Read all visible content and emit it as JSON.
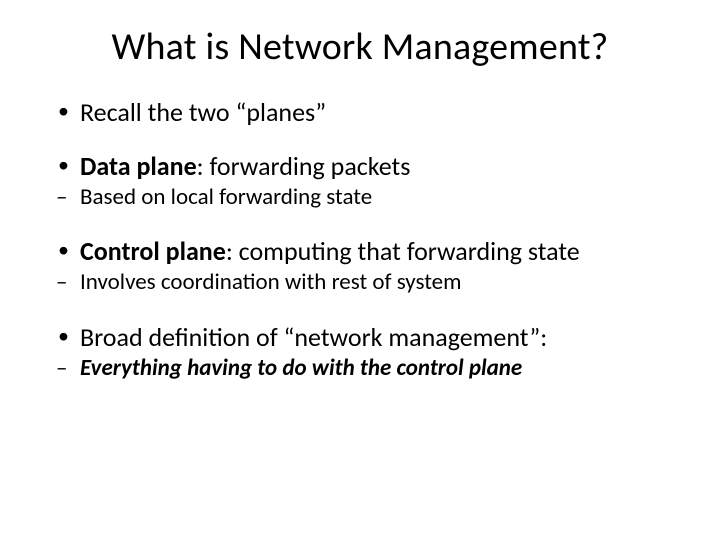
{
  "slide": {
    "title": "What is Network Management?",
    "title_fontsize": 38,
    "body_fontsize": 26,
    "sub_fontsize": 23,
    "background_color": "#ffffff",
    "text_color": "#000000",
    "font_family": "Calibri",
    "bullets": [
      {
        "text": "Recall the two “planes”",
        "bold_prefix": "",
        "rest": "Recall the two “planes”",
        "sub": []
      },
      {
        "bold_prefix": "Data plane",
        "rest": ": forwarding packets",
        "sub": [
          {
            "text": "Based on local forwarding state",
            "bold": false,
            "italic": false
          }
        ]
      },
      {
        "bold_prefix": "Control plane",
        "rest": ": computing that forwarding state",
        "sub": [
          {
            "text": "Involves coordination with rest of system",
            "bold": false,
            "italic": false
          }
        ]
      },
      {
        "bold_prefix": "",
        "rest": "Broad definition of “network management”:",
        "sub": [
          {
            "text": "Everything having to do with the control plane",
            "bold": true,
            "italic": true
          }
        ]
      }
    ]
  }
}
